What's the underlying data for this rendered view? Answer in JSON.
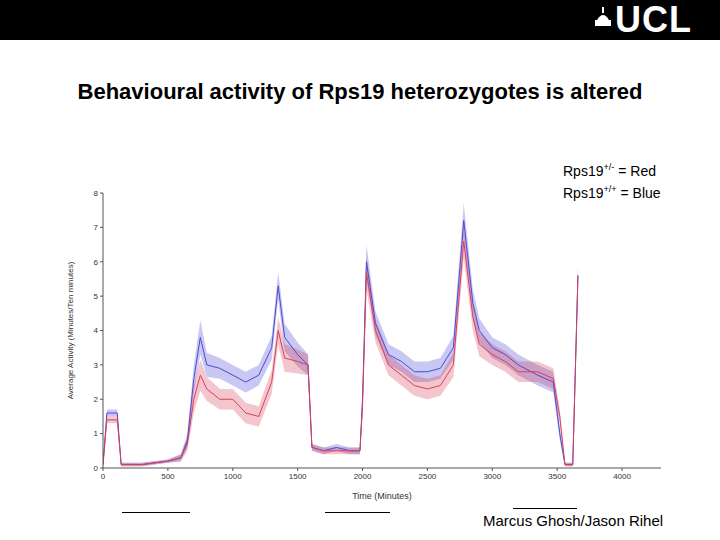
{
  "header": {
    "logo": "UCL"
  },
  "footer": {
    "author": "Marcus Ghosh/Jason Rihel"
  },
  "chart_data": {
    "type": "line",
    "title": "Behavioural activity of Rps19 heterozygotes is altered",
    "x_label": "Time (Minutes)",
    "y_label": "Average Activity (Minutes/Ten minutes)",
    "xlim": [
      0,
      4300
    ],
    "xticks": [
      0,
      500,
      1000,
      1500,
      2000,
      2500,
      3000,
      3500,
      4000
    ],
    "ylim": [
      0,
      8
    ],
    "yticks": [
      0,
      1,
      2,
      3,
      4,
      5,
      6,
      7,
      8
    ],
    "grid": false,
    "legend": "upper right",
    "x": [
      0,
      30,
      110,
      140,
      300,
      500,
      600,
      650,
      700,
      750,
      800,
      900,
      1000,
      1100,
      1200,
      1300,
      1350,
      1400,
      1500,
      1580,
      1610,
      1700,
      1800,
      1900,
      1980,
      2000,
      2030,
      2100,
      2200,
      2300,
      2400,
      2500,
      2600,
      2700,
      2780,
      2850,
      2900,
      3000,
      3100,
      3200,
      3350,
      3470,
      3520,
      3560,
      3620,
      3660
    ],
    "series": [
      {
        "name": "Rps19+/+ = Blue",
        "color": "#4a4ad8",
        "values": [
          0.1,
          1.6,
          1.6,
          0.1,
          0.1,
          0.2,
          0.3,
          0.8,
          2.6,
          3.8,
          3.0,
          2.9,
          2.7,
          2.5,
          2.7,
          3.5,
          5.3,
          3.8,
          3.3,
          3.0,
          0.6,
          0.5,
          0.6,
          0.5,
          0.5,
          2.0,
          6.0,
          4.2,
          3.3,
          3.1,
          2.8,
          2.8,
          2.9,
          3.5,
          7.2,
          4.8,
          4.0,
          3.5,
          3.3,
          3.0,
          2.7,
          2.5,
          1.0,
          0.1,
          0.1,
          5.6
        ],
        "errors": [
          0.05,
          0.1,
          0.1,
          0.05,
          0.05,
          0.05,
          0.1,
          0.2,
          0.4,
          0.5,
          0.35,
          0.3,
          0.3,
          0.3,
          0.3,
          0.35,
          0.4,
          0.4,
          0.35,
          0.3,
          0.1,
          0.1,
          0.1,
          0.1,
          0.1,
          0.3,
          0.5,
          0.35,
          0.3,
          0.3,
          0.3,
          0.3,
          0.3,
          0.35,
          0.5,
          0.4,
          0.35,
          0.3,
          0.3,
          0.3,
          0.3,
          0.3,
          0.2,
          0.05,
          0.05,
          0.3
        ]
      },
      {
        "name": "Rps19+/- = Red",
        "color": "#d8405a",
        "values": [
          0.1,
          1.4,
          1.4,
          0.1,
          0.1,
          0.2,
          0.3,
          0.7,
          2.0,
          2.7,
          2.3,
          2.0,
          2.0,
          1.6,
          1.5,
          2.5,
          4.0,
          3.2,
          3.1,
          3.0,
          0.6,
          0.5,
          0.5,
          0.5,
          0.5,
          1.8,
          5.7,
          4.0,
          3.0,
          2.7,
          2.4,
          2.3,
          2.4,
          3.0,
          6.6,
          4.4,
          3.6,
          3.3,
          3.1,
          2.8,
          2.8,
          2.6,
          1.5,
          0.1,
          0.1,
          5.6
        ],
        "errors": [
          0.05,
          0.1,
          0.1,
          0.05,
          0.05,
          0.05,
          0.1,
          0.2,
          0.4,
          0.45,
          0.35,
          0.3,
          0.3,
          0.3,
          0.3,
          0.35,
          0.4,
          0.4,
          0.35,
          0.3,
          0.1,
          0.1,
          0.1,
          0.1,
          0.1,
          0.3,
          0.5,
          0.35,
          0.3,
          0.3,
          0.3,
          0.3,
          0.3,
          0.35,
          0.5,
          0.4,
          0.35,
          0.3,
          0.3,
          0.3,
          0.3,
          0.3,
          0.2,
          0.05,
          0.05,
          0.3
        ]
      }
    ]
  }
}
